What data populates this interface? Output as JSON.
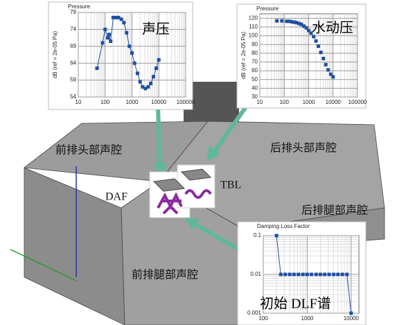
{
  "labels": {
    "front_head": "前排头部声腔",
    "rear_head": "后排头部声腔",
    "rear_leg": "后排腿部声腔",
    "front_leg": "前排腿部声腔",
    "daf": "DAF",
    "tbl": "TBL"
  },
  "chart_data": [
    {
      "type": "line",
      "title": "Pressure",
      "y_label": "dB (ref = 2e-05 Pa)",
      "annotation": "声压",
      "x": [
        50,
        80,
        100,
        125,
        140,
        160,
        200,
        250,
        315,
        400,
        500,
        630,
        800,
        1000,
        1250,
        1600,
        2000,
        2500,
        3150,
        4000,
        5000,
        6300,
        8000,
        10000
      ],
      "values": [
        62.5,
        70,
        74,
        71.5,
        72.5,
        70.5,
        77.5,
        77.5,
        77.5,
        77,
        76,
        73,
        69,
        67,
        64,
        61,
        58.5,
        57,
        56.5,
        57,
        58,
        60,
        62.5,
        65
      ],
      "color": "#1f4fa0",
      "line": true,
      "marker": "square",
      "xlim": [
        10,
        100000
      ],
      "xticks": [
        10,
        100,
        1000,
        10000,
        100000
      ],
      "log_x": true,
      "ylim": [
        54,
        79
      ],
      "yticks": [
        54,
        59,
        64,
        69,
        74,
        79
      ],
      "log_y": false,
      "grid": true
    },
    {
      "type": "line",
      "title": "Pressure",
      "y_label": "dB (ref = 2e-05 Pa)",
      "annotation": "水动压",
      "x": [
        50,
        80,
        125,
        160,
        200,
        250,
        315,
        400,
        500,
        630,
        800,
        1000,
        1250,
        1600,
        2000,
        2500,
        3150,
        4000,
        5000,
        6300,
        8000,
        10000
      ],
      "values": [
        117,
        117,
        116.5,
        116.5,
        116,
        115.5,
        115,
        114,
        113,
        111,
        109,
        106,
        103,
        99,
        94,
        88,
        81,
        74,
        67,
        61,
        56,
        53
      ],
      "color": "#1f4fa0",
      "line": false,
      "marker": "square",
      "xlim": [
        10,
        100000
      ],
      "xticks": [
        10,
        100,
        1000,
        10000,
        100000
      ],
      "log_x": true,
      "ylim": [
        30,
        125
      ],
      "yticks": [
        30,
        40,
        50,
        60,
        70,
        80,
        90,
        100,
        110,
        120
      ],
      "log_y": false,
      "grid": true
    },
    {
      "type": "line",
      "title": "Damping Loss Factor",
      "annotation": "初始 DLF谱",
      "x": [
        200,
        250,
        315,
        400,
        500,
        630,
        800,
        1000,
        1250,
        1600,
        2000,
        2500,
        3150,
        4000,
        5000,
        6300,
        8000,
        10000
      ],
      "values": [
        0.1,
        0.01,
        0.01,
        0.01,
        0.01,
        0.01,
        0.01,
        0.01,
        0.01,
        0.01,
        0.01,
        0.01,
        0.01,
        0.01,
        0.01,
        0.01,
        0.01,
        0.001
      ],
      "color": "#1f4fa0",
      "line": true,
      "marker": "square",
      "xlim": [
        100,
        15000
      ],
      "xticks": [
        100,
        1000,
        10000
      ],
      "log_x": true,
      "ylim": [
        0.001,
        0.1
      ],
      "yticks": [
        0.001,
        0.01,
        0.1
      ],
      "log_y": true,
      "grid": true
    }
  ]
}
